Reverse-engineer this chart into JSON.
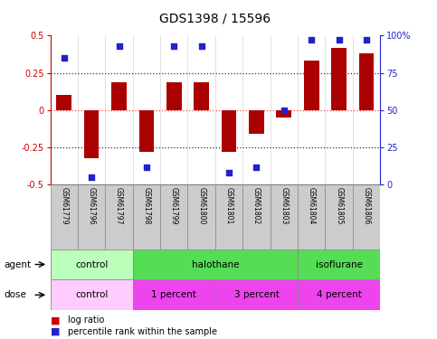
{
  "title": "GDS1398 / 15596",
  "samples": [
    "GSM61779",
    "GSM61796",
    "GSM61797",
    "GSM61798",
    "GSM61799",
    "GSM61800",
    "GSM61801",
    "GSM61802",
    "GSM61803",
    "GSM61804",
    "GSM61805",
    "GSM61806"
  ],
  "log_ratio": [
    0.1,
    -0.32,
    0.19,
    -0.28,
    0.19,
    0.19,
    -0.28,
    -0.16,
    -0.05,
    0.33,
    0.42,
    0.38
  ],
  "percentile": [
    85,
    5,
    93,
    12,
    93,
    93,
    8,
    12,
    50,
    97,
    97,
    97
  ],
  "ylim_left": [
    -0.5,
    0.5
  ],
  "ylim_right": [
    0,
    100
  ],
  "yticks_left": [
    -0.5,
    -0.25,
    0,
    0.25,
    0.5
  ],
  "yticks_right": [
    0,
    25,
    50,
    75,
    100
  ],
  "bar_color": "#aa0000",
  "dot_color": "#2222cc",
  "agent_groups": [
    {
      "label": "control",
      "color": "#bbffbb",
      "start": 0,
      "end": 3
    },
    {
      "label": "halothane",
      "color": "#55dd55",
      "start": 3,
      "end": 9
    },
    {
      "label": "isoflurane",
      "color": "#55dd55",
      "start": 9,
      "end": 12
    }
  ],
  "dose_groups": [
    {
      "label": "control",
      "color": "#ffccff",
      "start": 0,
      "end": 3
    },
    {
      "label": "1 percent",
      "color": "#ee44ee",
      "start": 3,
      "end": 6
    },
    {
      "label": "3 percent",
      "color": "#ee44ee",
      "start": 6,
      "end": 9
    },
    {
      "label": "4 percent",
      "color": "#ee44ee",
      "start": 9,
      "end": 12
    }
  ],
  "legend_bar_color": "#cc0000",
  "legend_dot_color": "#2222cc",
  "left_tick_color": "#cc0000",
  "right_tick_color": "#2222cc",
  "title_fontsize": 10,
  "sample_box_color": "#cccccc",
  "hline0_color": "#ff4444",
  "hline_dot_color": "#333333"
}
